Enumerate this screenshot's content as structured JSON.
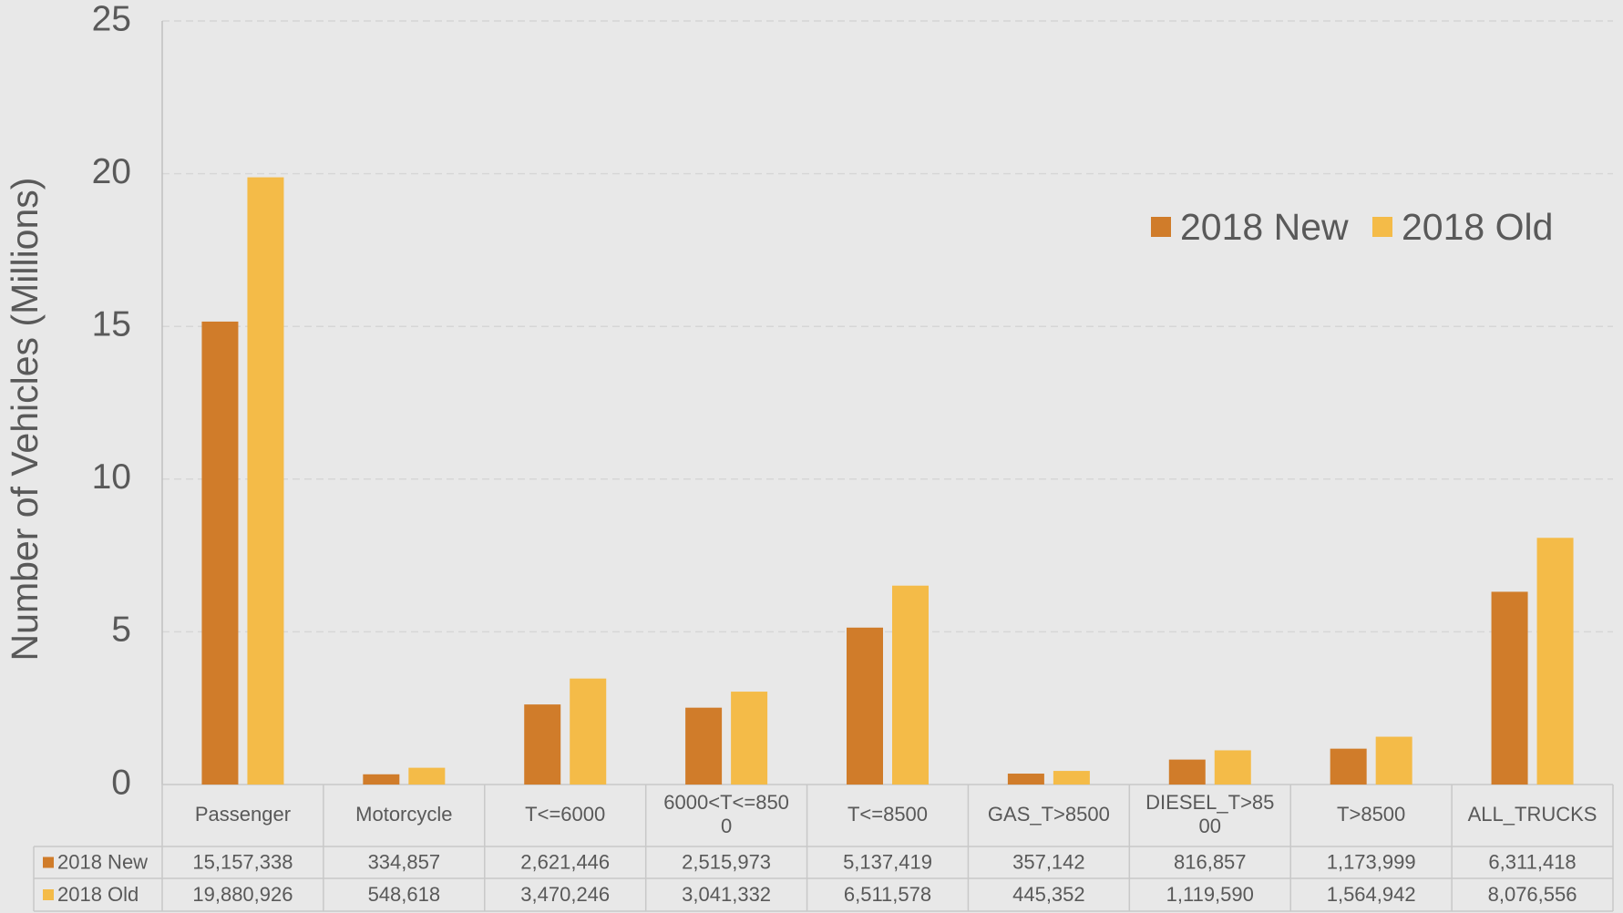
{
  "chart_data": {
    "type": "bar",
    "y_label": "Number of Vehicles (Millions)",
    "categories": [
      "Passenger",
      "Motorcycle",
      "T<=6000",
      "6000<T<=8500",
      "T<=8500",
      "GAS_T>8500",
      "DIESEL_T>8500",
      "T>8500",
      "ALL_TRUCKS"
    ],
    "series": [
      {
        "name": "2018 New",
        "color": "#d07c2a",
        "values": [
          15.157338,
          0.334857,
          2.621446,
          2.515973,
          5.137419,
          0.357142,
          0.816857,
          1.173999,
          6.311418
        ],
        "value_labels": [
          "15,157,338",
          "334,857",
          "2,621,446",
          "2,515,973",
          "5,137,419",
          "357,142",
          "816,857",
          "1,173,999",
          "6,311,418"
        ]
      },
      {
        "name": "2018 Old",
        "color": "#f4bb48",
        "values": [
          19.880926,
          0.548618,
          3.470246,
          3.041332,
          6.511578,
          0.445352,
          1.11959,
          1.564942,
          8.076556
        ],
        "value_labels": [
          "19,880,926",
          "548,618",
          "3,470,246",
          "3,041,332",
          "6,511,578",
          "445,352",
          "1,119,590",
          "1,564,942",
          "8,076,556"
        ]
      }
    ],
    "ylim": [
      0,
      25
    ],
    "yticks": [
      0,
      5,
      10,
      15,
      20,
      25
    ],
    "grid": true,
    "legend": "upper right",
    "data_table": true
  }
}
